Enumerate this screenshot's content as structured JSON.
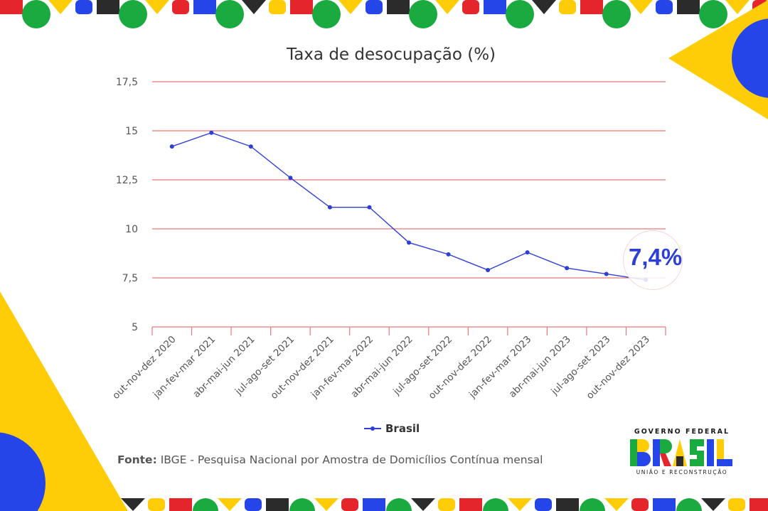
{
  "chart_data": {
    "type": "line",
    "title": "Taxa de desocupação (%)",
    "categories": [
      "out-nov-dez 2020",
      "jan-fev-mar 2021",
      "abr-mai-jun 2021",
      "jul-ago-set 2021",
      "out-nov-dez 2021",
      "jan-fev-mar 2022",
      "abr-mai-jun 2022",
      "jul-ago-set 2022",
      "out-nov-dez 2022",
      "jan-fev-mar 2023",
      "abr-mai-jun 2023",
      "jul-ago-set 2023",
      "out-nov-dez 2023"
    ],
    "series": [
      {
        "name": "Brasil",
        "color": "#2f3fd6",
        "values": [
          14.2,
          14.9,
          14.2,
          12.6,
          11.1,
          11.1,
          9.3,
          8.7,
          7.9,
          8.8,
          8.0,
          7.7,
          7.4
        ]
      }
    ],
    "ylim": [
      5,
      17.5
    ],
    "yticks": [
      "5",
      "7,5",
      "10",
      "12,5",
      "15",
      "17,5"
    ],
    "ytick_values": [
      5,
      7.5,
      10,
      12.5,
      15,
      17.5
    ],
    "grid": true,
    "gridline_color": "#e8797c",
    "legend_position": "bottom-center",
    "callout": "7,4%"
  },
  "source": {
    "label": "Fonte:",
    "text": "IBGE - Pesquisa Nacional por Amostra de Domicílios Contínua mensal"
  },
  "logo": {
    "top": "GOVERNO FEDERAL",
    "word": "BRASIL",
    "bottom": "UNIÃO E RECONSTRUÇÃO"
  },
  "colors": {
    "green": "#1aaa3f",
    "yellow": "#ffcd07",
    "blue": "#2545e8",
    "red": "#e4252b",
    "black": "#2b2b2b"
  }
}
